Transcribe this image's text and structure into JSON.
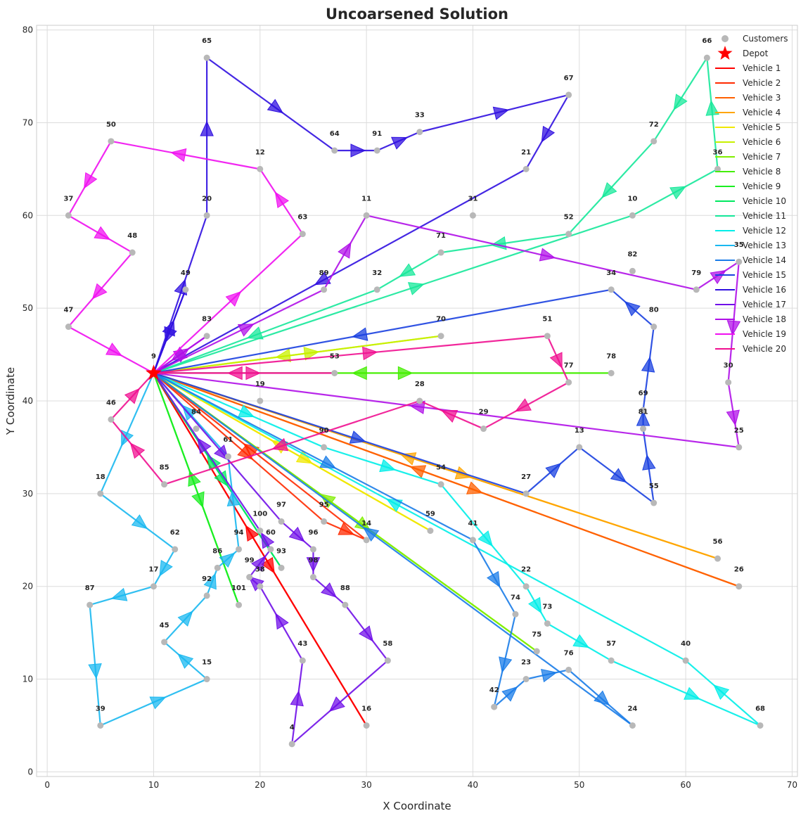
{
  "chart_data": {
    "type": "scatter",
    "title": "Uncoarsened Solution",
    "xlabel": "X Coordinate",
    "ylabel": "Y Coordinate",
    "xlim": [
      -1,
      70.5
    ],
    "ylim": [
      -0.5,
      80.5
    ],
    "xticks": [
      0,
      10,
      20,
      30,
      40,
      50,
      60,
      70
    ],
    "yticks": [
      0,
      10,
      20,
      30,
      40,
      50,
      60,
      70,
      80
    ],
    "grid": true,
    "legend_position": "top-right",
    "depot": {
      "label": "9",
      "x": 10,
      "y": 43,
      "legend": "Depot",
      "color": "#ff0000"
    },
    "customers_legend": "Customers",
    "customer_color": "#b8b8b8",
    "customers": [
      {
        "id": "65",
        "x": 15,
        "y": 77
      },
      {
        "id": "67",
        "x": 49,
        "y": 73
      },
      {
        "id": "64",
        "x": 27,
        "y": 67
      },
      {
        "id": "33",
        "x": 35,
        "y": 69
      },
      {
        "id": "91",
        "x": 31,
        "y": 67
      },
      {
        "id": "66",
        "x": 62,
        "y": 77
      },
      {
        "id": "72",
        "x": 57,
        "y": 68
      },
      {
        "id": "36",
        "x": 63,
        "y": 65
      },
      {
        "id": "50",
        "x": 6,
        "y": 68
      },
      {
        "id": "12",
        "x": 20,
        "y": 65
      },
      {
        "id": "21",
        "x": 45,
        "y": 65
      },
      {
        "id": "37",
        "x": 2,
        "y": 60
      },
      {
        "id": "20",
        "x": 15,
        "y": 60
      },
      {
        "id": "11",
        "x": 30,
        "y": 60
      },
      {
        "id": "31",
        "x": 40,
        "y": 60
      },
      {
        "id": "10",
        "x": 55,
        "y": 60
      },
      {
        "id": "63",
        "x": 24,
        "y": 58
      },
      {
        "id": "52",
        "x": 49,
        "y": 58
      },
      {
        "id": "48",
        "x": 8,
        "y": 56
      },
      {
        "id": "71",
        "x": 37,
        "y": 56
      },
      {
        "id": "35",
        "x": 65,
        "y": 55
      },
      {
        "id": "82",
        "x": 55,
        "y": 54
      },
      {
        "id": "49",
        "x": 13,
        "y": 52
      },
      {
        "id": "89",
        "x": 26,
        "y": 52
      },
      {
        "id": "32",
        "x": 31,
        "y": 52
      },
      {
        "id": "34",
        "x": 53,
        "y": 52
      },
      {
        "id": "79",
        "x": 61,
        "y": 52
      },
      {
        "id": "47",
        "x": 2,
        "y": 48
      },
      {
        "id": "83",
        "x": 15,
        "y": 47
      },
      {
        "id": "70",
        "x": 37,
        "y": 47
      },
      {
        "id": "51",
        "x": 47,
        "y": 47
      },
      {
        "id": "80",
        "x": 57,
        "y": 48
      },
      {
        "id": "53",
        "x": 27,
        "y": 43
      },
      {
        "id": "78",
        "x": 53,
        "y": 43
      },
      {
        "id": "77",
        "x": 49,
        "y": 42
      },
      {
        "id": "30",
        "x": 64,
        "y": 42
      },
      {
        "id": "19",
        "x": 20,
        "y": 40
      },
      {
        "id": "28",
        "x": 35,
        "y": 40
      },
      {
        "id": "69",
        "x": 56,
        "y": 39
      },
      {
        "id": "46",
        "x": 6,
        "y": 38
      },
      {
        "id": "84",
        "x": 14,
        "y": 37
      },
      {
        "id": "29",
        "x": 41,
        "y": 37
      },
      {
        "id": "81",
        "x": 56,
        "y": 37
      },
      {
        "id": "61",
        "x": 17,
        "y": 34
      },
      {
        "id": "90",
        "x": 26,
        "y": 35
      },
      {
        "id": "13",
        "x": 50,
        "y": 35
      },
      {
        "id": "25",
        "x": 65,
        "y": 35
      },
      {
        "id": "85",
        "x": 11,
        "y": 31
      },
      {
        "id": "54",
        "x": 37,
        "y": 31
      },
      {
        "id": "18",
        "x": 5,
        "y": 30
      },
      {
        "id": "27",
        "x": 45,
        "y": 30
      },
      {
        "id": "55",
        "x": 57,
        "y": 29
      },
      {
        "id": "97",
        "x": 22,
        "y": 27
      },
      {
        "id": "95",
        "x": 26,
        "y": 27
      },
      {
        "id": "100",
        "x": 20,
        "y": 26
      },
      {
        "id": "14",
        "x": 30,
        "y": 25
      },
      {
        "id": "59",
        "x": 36,
        "y": 26
      },
      {
        "id": "41",
        "x": 40,
        "y": 25
      },
      {
        "id": "62",
        "x": 12,
        "y": 24
      },
      {
        "id": "94",
        "x": 18,
        "y": 24
      },
      {
        "id": "60",
        "x": 21,
        "y": 24
      },
      {
        "id": "96",
        "x": 25,
        "y": 24
      },
      {
        "id": "86",
        "x": 16,
        "y": 22
      },
      {
        "id": "99",
        "x": 19,
        "y": 21
      },
      {
        "id": "93",
        "x": 22,
        "y": 22
      },
      {
        "id": "98",
        "x": 25,
        "y": 21
      },
      {
        "id": "56",
        "x": 63,
        "y": 23
      },
      {
        "id": "17",
        "x": 10,
        "y": 20
      },
      {
        "id": "38",
        "x": 20,
        "y": 20
      },
      {
        "id": "92",
        "x": 15,
        "y": 19
      },
      {
        "id": "22",
        "x": 45,
        "y": 20
      },
      {
        "id": "26",
        "x": 65,
        "y": 20
      },
      {
        "id": "87",
        "x": 4,
        "y": 18
      },
      {
        "id": "101",
        "x": 18,
        "y": 18
      },
      {
        "id": "88",
        "x": 28,
        "y": 18
      },
      {
        "id": "74",
        "x": 44,
        "y": 17
      },
      {
        "id": "73",
        "x": 47,
        "y": 16
      },
      {
        "id": "45",
        "x": 11,
        "y": 14
      },
      {
        "id": "75",
        "x": 46,
        "y": 13
      },
      {
        "id": "43",
        "x": 24,
        "y": 12
      },
      {
        "id": "58",
        "x": 32,
        "y": 12
      },
      {
        "id": "57",
        "x": 53,
        "y": 12
      },
      {
        "id": "40",
        "x": 60,
        "y": 12
      },
      {
        "id": "15",
        "x": 15,
        "y": 10
      },
      {
        "id": "23",
        "x": 45,
        "y": 10
      },
      {
        "id": "76",
        "x": 49,
        "y": 11
      },
      {
        "id": "42",
        "x": 42,
        "y": 7
      },
      {
        "id": "39",
        "x": 5,
        "y": 5
      },
      {
        "id": "16",
        "x": 30,
        "y": 5
      },
      {
        "id": "24",
        "x": 55,
        "y": 5
      },
      {
        "id": "68",
        "x": 67,
        "y": 5
      },
      {
        "id": "4",
        "x": 23,
        "y": 3
      }
    ],
    "series": [
      {
        "name": "Vehicle 1",
        "color": "#ff0000",
        "route": [
          "9",
          "16",
          "9"
        ]
      },
      {
        "name": "Vehicle 2",
        "color": "#ff2a00",
        "route": [
          "9",
          "95",
          "14",
          "9"
        ]
      },
      {
        "name": "Vehicle 3",
        "color": "#ff6000",
        "route": [
          "9",
          "26",
          "9"
        ]
      },
      {
        "name": "Vehicle 4",
        "color": "#ffa500",
        "route": [
          "9",
          "56",
          "9"
        ]
      },
      {
        "name": "Vehicle 5",
        "color": "#f0e800",
        "route": [
          "9",
          "59",
          "9"
        ]
      },
      {
        "name": "Vehicle 6",
        "color": "#c8f000",
        "route": [
          "9",
          "70",
          "9"
        ]
      },
      {
        "name": "Vehicle 7",
        "color": "#80ee00",
        "route": [
          "9",
          "75",
          "9"
        ]
      },
      {
        "name": "Vehicle 8",
        "color": "#44ee00",
        "route": [
          "9",
          "78",
          "9"
        ]
      },
      {
        "name": "Vehicle 9",
        "color": "#1aee20",
        "route": [
          "9",
          "101",
          "9"
        ]
      },
      {
        "name": "Vehicle 10",
        "color": "#00e860",
        "route": [
          "9",
          "93",
          "9"
        ]
      },
      {
        "name": "Vehicle 11",
        "color": "#16e89a",
        "route": [
          "9",
          "10",
          "36",
          "66",
          "72",
          "52",
          "71",
          "32",
          "9"
        ]
      },
      {
        "name": "Vehicle 12",
        "color": "#00eee8",
        "route": [
          "9",
          "90",
          "54",
          "22",
          "73",
          "57",
          "68",
          "40",
          "9"
        ]
      },
      {
        "name": "Vehicle 13",
        "color": "#1ab8f0",
        "route": [
          "9",
          "18",
          "62",
          "17",
          "87",
          "39",
          "15",
          "45",
          "92",
          "86",
          "94",
          "61",
          "9"
        ]
      },
      {
        "name": "Vehicle 14",
        "color": "#1a7ce8",
        "route": [
          "9",
          "41",
          "74",
          "42",
          "23",
          "76",
          "24",
          "9"
        ]
      },
      {
        "name": "Vehicle 15",
        "color": "#1a40e0",
        "route": [
          "9",
          "27",
          "13",
          "55",
          "81",
          "69",
          "80",
          "34",
          "9"
        ]
      },
      {
        "name": "Vehicle 16",
        "color": "#3010e0",
        "route": [
          "9",
          "20",
          "65",
          "64",
          "91",
          "33",
          "67",
          "21",
          "9",
          "49",
          "9"
        ]
      },
      {
        "name": "Vehicle 17",
        "color": "#7010e8",
        "route": [
          "9",
          "97",
          "96",
          "98",
          "88",
          "58",
          "4",
          "43",
          "38",
          "99",
          "60",
          "100",
          "9"
        ]
      },
      {
        "name": "Vehicle 18",
        "color": "#b010e8",
        "route": [
          "9",
          "83",
          "9",
          "89",
          "11",
          "79",
          "35",
          "30",
          "25",
          "9"
        ]
      },
      {
        "name": "Vehicle 19",
        "color": "#f010f0",
        "route": [
          "9",
          "63",
          "12",
          "50",
          "37",
          "48",
          "47",
          "9"
        ]
      },
      {
        "name": "Vehicle 20",
        "color": "#f01090",
        "route": [
          "9",
          "53",
          "9",
          "51",
          "77",
          "29",
          "28",
          "85",
          "46",
          "9"
        ]
      }
    ]
  }
}
